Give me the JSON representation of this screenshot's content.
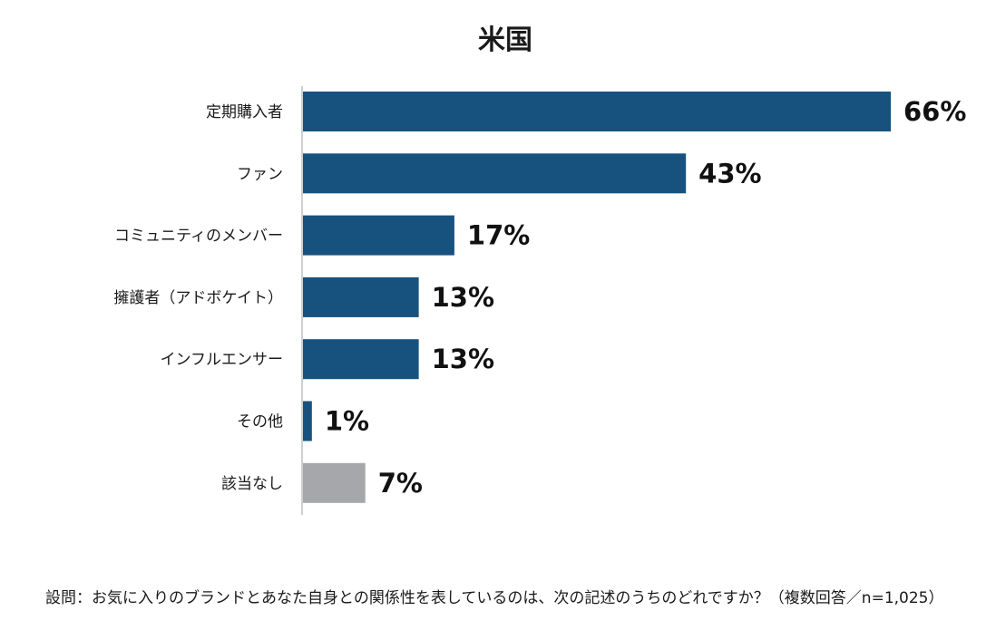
{
  "chart_data": {
    "type": "bar",
    "orientation": "horizontal",
    "title": "米国",
    "categories": [
      "定期購入者",
      "ファン",
      "コミュニティのメンバー",
      "擁護者（アドボケイト）",
      "インフルエンサー",
      "その他",
      "該当なし"
    ],
    "values": [
      66,
      43,
      17,
      13,
      13,
      1,
      7
    ],
    "value_labels": [
      "66%",
      "43%",
      "17%",
      "13%",
      "13%",
      "1%",
      "7%"
    ],
    "unit": "%",
    "xlim": [
      0,
      100
    ],
    "grid": false,
    "colors": {
      "primary": "#17527f",
      "none_category": "#a5a7aa"
    },
    "bar_colors": [
      "#17527f",
      "#17527f",
      "#17527f",
      "#17527f",
      "#17527f",
      "#17527f",
      "#a5a7aa"
    ]
  },
  "footnote": "設問：お気に入りのブランドとあなた自身との関係性を表しているのは、次の記述のうちのどれですか？（複数回答／n=1,025）"
}
